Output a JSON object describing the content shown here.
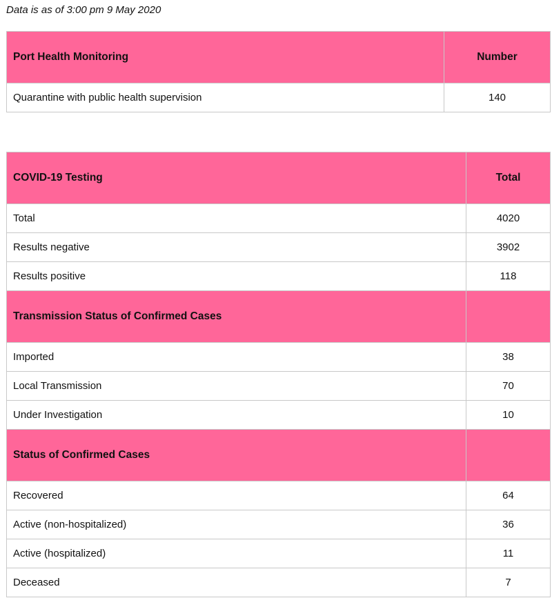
{
  "as_of": "Data is as of 3:00 pm 9 May 2020",
  "header_color": "#ff6699",
  "port_health": {
    "title": "Port Health Monitoring",
    "col": "Number",
    "rows": [
      {
        "label": "Quarantine with public health supervision",
        "value": "140"
      }
    ]
  },
  "testing": {
    "title": "COVID-19 Testing",
    "col": "Total",
    "rows": [
      {
        "label": "Total",
        "value": "4020"
      },
      {
        "label": "Results negative",
        "value": "3902"
      },
      {
        "label": "Results positive",
        "value": "118"
      }
    ]
  },
  "transmission": {
    "title": "Transmission Status of Confirmed Cases",
    "rows": [
      {
        "label": "Imported",
        "value": "38"
      },
      {
        "label": "Local Transmission",
        "value": "70"
      },
      {
        "label": "Under Investigation",
        "value": "10"
      }
    ]
  },
  "status": {
    "title": "Status of Confirmed Cases",
    "rows": [
      {
        "label": "Recovered",
        "value": "64"
      },
      {
        "label": "Active (non-hospitalized)",
        "value": "36"
      },
      {
        "label": "Active (hospitalized)",
        "value": "11"
      },
      {
        "label": "Deceased",
        "value": "7"
      }
    ]
  }
}
